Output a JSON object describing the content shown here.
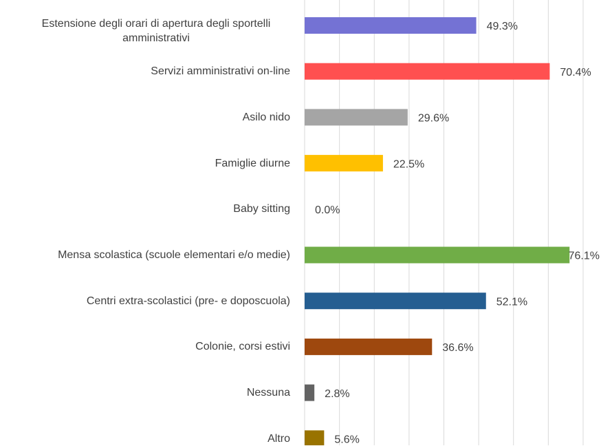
{
  "chart_data": {
    "type": "barh",
    "categories": [
      "Estensione degli orari di apertura degli sportelli amministrativi",
      "Servizi amministrativi on-line",
      "Asilo nido",
      "Famiglie diurne",
      "Baby sitting",
      "Mensa scolastica (scuole elementari e/o medie)",
      "Centri extra-scolastici (pre- e doposcuola)",
      "Colonie, corsi estivi",
      "Nessuna",
      "Altro"
    ],
    "values": [
      49.3,
      70.4,
      29.6,
      22.5,
      0.0,
      76.1,
      52.1,
      36.6,
      2.8,
      5.6
    ],
    "value_labels": [
      "49.3%",
      "70.4%",
      "29.6%",
      "22.5%",
      "0.0%",
      "76.1%",
      "52.1%",
      "36.6%",
      "2.8%",
      "5.6%"
    ],
    "colors": [
      "#7472d4",
      "#ff5050",
      "#a5a5a5",
      "#ffc000",
      "#5b9bd5",
      "#70ad47",
      "#255e91",
      "#9e480e",
      "#636363",
      "#997300"
    ],
    "xlim": [
      0,
      80
    ],
    "xticks": [
      0,
      10,
      20,
      30,
      40,
      50,
      60,
      70,
      80
    ],
    "grid": true
  }
}
